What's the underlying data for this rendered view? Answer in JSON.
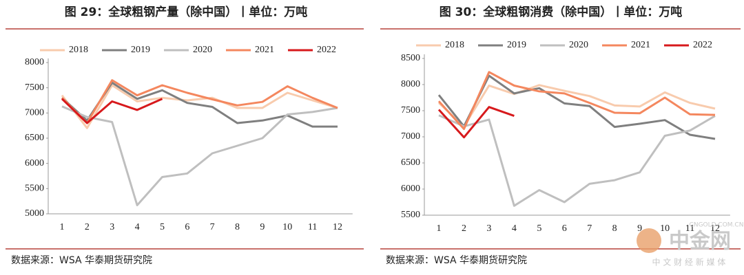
{
  "chart_data": [
    {
      "type": "line",
      "title": "图 29：全球粗钢产量（除中国）丨单位：万吨",
      "source": "数据来源：WSA 华泰期货研究院",
      "categories": [
        1,
        2,
        3,
        4,
        5,
        6,
        7,
        8,
        9,
        10,
        11,
        12
      ],
      "ylim": [
        5000,
        8000
      ],
      "yticks": [
        5000,
        5500,
        6000,
        6500,
        7000,
        7500,
        8000
      ],
      "series": [
        {
          "name": "2018",
          "color": "#f8cbad",
          "values": [
            7350,
            6700,
            7550,
            7230,
            7300,
            7250,
            7300,
            7100,
            7100,
            7400,
            7250,
            7100
          ]
        },
        {
          "name": "2019",
          "color": "#7f7f7f",
          "values": [
            7300,
            6850,
            7600,
            7280,
            7450,
            7200,
            7120,
            6800,
            6850,
            6950,
            6730,
            6730
          ]
        },
        {
          "name": "2020",
          "color": "#bfbfbf",
          "values": [
            7130,
            6920,
            6820,
            5170,
            5730,
            5800,
            6200,
            6350,
            6500,
            6970,
            7020,
            7100
          ]
        },
        {
          "name": "2021",
          "color": "#f4875e",
          "values": [
            7300,
            6800,
            7650,
            7350,
            7550,
            7400,
            7270,
            7150,
            7220,
            7530,
            7300,
            7100
          ]
        },
        {
          "name": "2022",
          "color": "#d7191c",
          "values": [
            7280,
            6800,
            7230,
            7060,
            7280,
            null,
            null,
            null,
            null,
            null,
            null,
            null
          ]
        }
      ]
    },
    {
      "type": "line",
      "title": "图 30：全球粗钢消费（除中国）丨单位：万吨",
      "source": "数据来源：WSA 华泰期货研究院",
      "categories": [
        1,
        2,
        3,
        4,
        5,
        6,
        7,
        8,
        9,
        10,
        11,
        12
      ],
      "ylim": [
        5500,
        8500
      ],
      "yticks": [
        5500,
        6000,
        6500,
        7000,
        7500,
        8000,
        8500
      ],
      "series": [
        {
          "name": "2018",
          "color": "#f8cbad",
          "values": [
            7650,
            7200,
            7980,
            7820,
            7990,
            7880,
            7780,
            7600,
            7580,
            7850,
            7650,
            7540
          ]
        },
        {
          "name": "2019",
          "color": "#7f7f7f",
          "values": [
            7800,
            7200,
            8170,
            7830,
            7930,
            7640,
            7590,
            7190,
            7250,
            7320,
            7040,
            6960
          ]
        },
        {
          "name": "2020",
          "color": "#bfbfbf",
          "values": [
            7410,
            7200,
            7330,
            5680,
            5980,
            5750,
            6100,
            6170,
            6320,
            7020,
            7120,
            7400
          ]
        },
        {
          "name": "2021",
          "color": "#f4875e",
          "values": [
            7680,
            7150,
            8240,
            7980,
            7870,
            7830,
            7650,
            7460,
            7450,
            7750,
            7430,
            7420
          ]
        },
        {
          "name": "2022",
          "color": "#d7191c",
          "values": [
            7520,
            6990,
            7570,
            7400,
            null,
            null,
            null,
            null,
            null,
            null,
            null,
            null
          ]
        }
      ]
    }
  ],
  "watermark": {
    "logo": "中金网",
    "site": "CNGOLD.COM.CN",
    "slogan": "中 文 财 经 新 媒 体"
  }
}
